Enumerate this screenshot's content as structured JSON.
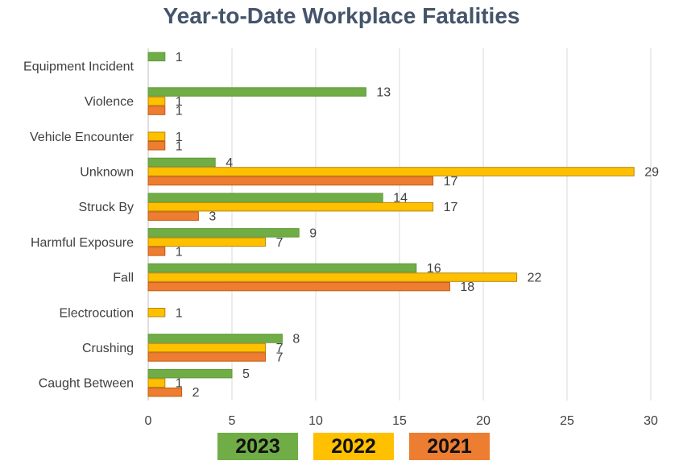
{
  "chart_data": {
    "type": "bar",
    "orientation": "horizontal",
    "title": "Year-to-Date Workplace Fatalities",
    "xlabel": "",
    "ylabel": "",
    "xlim": [
      0,
      30
    ],
    "ticks": [
      0,
      5,
      10,
      15,
      20,
      25,
      30
    ],
    "grid": true,
    "legend_position": "bottom",
    "categories": [
      "Equipment Incident",
      "Violence",
      "Vehicle Encounter",
      "Unknown",
      "Struck By",
      "Harmful Exposure",
      "Fall",
      "Electrocution",
      "Crushing",
      "Caught Between"
    ],
    "series": [
      {
        "name": "2023",
        "color": "#70ad47",
        "values": [
          1,
          13,
          null,
          4,
          14,
          9,
          16,
          null,
          8,
          5
        ]
      },
      {
        "name": "2022",
        "color": "#ffc000",
        "values": [
          null,
          1,
          1,
          29,
          17,
          7,
          22,
          1,
          7,
          1
        ]
      },
      {
        "name": "2021",
        "color": "#ed7d31",
        "values": [
          null,
          1,
          1,
          17,
          3,
          1,
          18,
          null,
          7,
          2
        ]
      }
    ]
  }
}
